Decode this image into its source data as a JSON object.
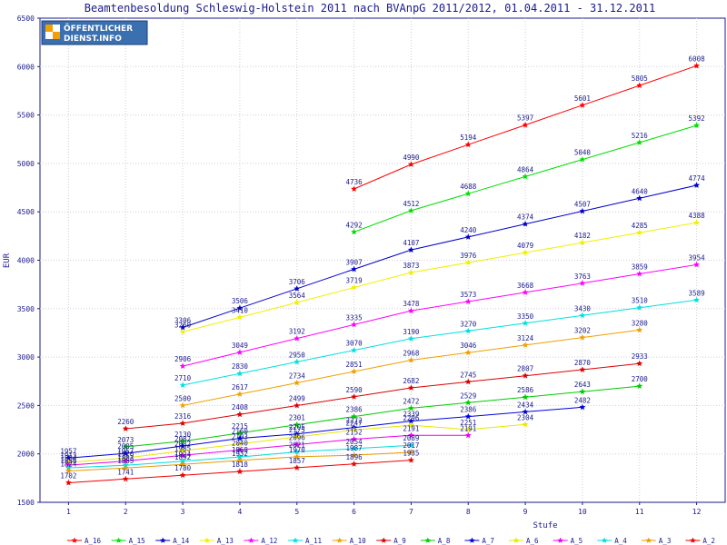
{
  "chart_data": {
    "type": "line",
    "title": "Beamtenbesoldung Schleswig-Holstein 2011 nach BVAnpG 2011/2012, 01.04.2011 - 31.12.2011",
    "xlabel": "Stufe",
    "ylabel": "EUR",
    "xlim": [
      0.5,
      12.5
    ],
    "ylim": [
      1500,
      6500
    ],
    "x_ticks": [
      1,
      2,
      3,
      4,
      5,
      6,
      7,
      8,
      9,
      10,
      11,
      12
    ],
    "y_ticks": [
      1500,
      2000,
      2500,
      3000,
      3500,
      4000,
      4500,
      5000,
      5500,
      6000,
      6500
    ],
    "grid": true,
    "legend_position": "bottom",
    "logo": {
      "line1": "ÖFFENTLICHER",
      "line2": "DIENST.INFO"
    },
    "series": [
      {
        "name": "A_16",
        "color": "#ff0000",
        "points": [
          [
            6,
            4736
          ],
          [
            7,
            4990
          ],
          [
            8,
            5194
          ],
          [
            9,
            5397
          ],
          [
            10,
            5601
          ],
          [
            11,
            5805
          ],
          [
            12,
            6008
          ]
        ]
      },
      {
        "name": "A_15",
        "color": "#00e000",
        "points": [
          [
            6,
            4292
          ],
          [
            7,
            4512
          ],
          [
            8,
            4688
          ],
          [
            9,
            4864
          ],
          [
            10,
            5040
          ],
          [
            11,
            5216
          ],
          [
            12,
            5392
          ]
        ]
      },
      {
        "name": "A_14",
        "color": "#0000cc",
        "points": [
          [
            3,
            3306
          ],
          [
            4,
            3506
          ],
          [
            5,
            3706
          ],
          [
            6,
            3907
          ],
          [
            7,
            4107
          ],
          [
            8,
            4240
          ],
          [
            9,
            4374
          ],
          [
            10,
            4507
          ],
          [
            11,
            4640
          ],
          [
            12,
            4774
          ]
        ]
      },
      {
        "name": "A_13",
        "color": "#f0f000",
        "points": [
          [
            3,
            3260
          ],
          [
            4,
            3410
          ],
          [
            5,
            3564
          ],
          [
            6,
            3719
          ],
          [
            7,
            3873
          ],
          [
            8,
            3976
          ],
          [
            9,
            4079
          ],
          [
            10,
            4182
          ],
          [
            11,
            4285
          ],
          [
            12,
            4388
          ]
        ]
      },
      {
        "name": "A_12",
        "color": "#ff00ff",
        "points": [
          [
            3,
            2906
          ],
          [
            4,
            3049
          ],
          [
            5,
            3192
          ],
          [
            6,
            3335
          ],
          [
            7,
            3478
          ],
          [
            8,
            3573
          ],
          [
            9,
            3668
          ],
          [
            10,
            3763
          ],
          [
            11,
            3859
          ],
          [
            12,
            3954
          ]
        ]
      },
      {
        "name": "A_11",
        "color": "#00e0e0",
        "points": [
          [
            3,
            2710
          ],
          [
            4,
            2830
          ],
          [
            5,
            2950
          ],
          [
            6,
            3070
          ],
          [
            7,
            3190
          ],
          [
            8,
            3270
          ],
          [
            9,
            3350
          ],
          [
            10,
            3430
          ],
          [
            11,
            3510
          ],
          [
            12,
            3589
          ]
        ]
      },
      {
        "name": "A_10",
        "color": "#f0a000",
        "points": [
          [
            3,
            2500
          ],
          [
            4,
            2617
          ],
          [
            5,
            2734
          ],
          [
            6,
            2851
          ],
          [
            7,
            2968
          ],
          [
            8,
            3046
          ],
          [
            9,
            3124
          ],
          [
            10,
            3202
          ],
          [
            11,
            3280
          ]
        ]
      },
      {
        "name": "A_9",
        "color": "#dd0000",
        "points": [
          [
            2,
            2260
          ],
          [
            3,
            2316
          ],
          [
            4,
            2408
          ],
          [
            5,
            2499
          ],
          [
            6,
            2590
          ],
          [
            7,
            2682
          ],
          [
            8,
            2745
          ],
          [
            9,
            2807
          ],
          [
            10,
            2870
          ],
          [
            11,
            2933
          ]
        ]
      },
      {
        "name": "A_8",
        "color": "#00cc00",
        "points": [
          [
            2,
            2073
          ],
          [
            3,
            2130
          ],
          [
            4,
            2215
          ],
          [
            5,
            2301
          ],
          [
            6,
            2386
          ],
          [
            7,
            2472
          ],
          [
            8,
            2529
          ],
          [
            9,
            2586
          ],
          [
            10,
            2643
          ],
          [
            11,
            2700
          ]
        ]
      },
      {
        "name": "A_7",
        "color": "#0000dd",
        "points": [
          [
            1,
            1957
          ],
          [
            2,
            2005
          ],
          [
            3,
            2082
          ],
          [
            4,
            2160
          ],
          [
            5,
            2205
          ],
          [
            6,
            2272
          ],
          [
            7,
            2339
          ],
          [
            8,
            2386
          ],
          [
            9,
            2434
          ],
          [
            10,
            2482
          ]
        ]
      },
      {
        "name": "A_6",
        "color": "#e8e800",
        "points": [
          [
            1,
            1913
          ],
          [
            2,
            1957
          ],
          [
            3,
            2032
          ],
          [
            4,
            2103
          ],
          [
            5,
            2175
          ],
          [
            6,
            2247
          ],
          [
            7,
            2296
          ],
          [
            8,
            2251
          ],
          [
            9,
            2304
          ]
        ]
      },
      {
        "name": "A_5",
        "color": "#ee00ee",
        "points": [
          [
            1,
            1884
          ],
          [
            2,
            1926
          ],
          [
            3,
            1985
          ],
          [
            4,
            2040
          ],
          [
            5,
            2096
          ],
          [
            6,
            2152
          ],
          [
            7,
            2191
          ],
          [
            8,
            2191
          ]
        ]
      },
      {
        "name": "A_4",
        "color": "#00dddd",
        "points": [
          [
            1,
            1856
          ],
          [
            2,
            1883
          ],
          [
            3,
            1924
          ],
          [
            4,
            1968
          ],
          [
            5,
            2021
          ],
          [
            6,
            2054
          ],
          [
            7,
            2089
          ]
        ]
      },
      {
        "name": "A_3",
        "color": "#e89a00",
        "points": [
          [
            1,
            1824
          ],
          [
            2,
            1855
          ],
          [
            3,
            1892
          ],
          [
            4,
            1932
          ],
          [
            5,
            1970
          ],
          [
            6,
            1987
          ],
          [
            7,
            2017
          ]
        ]
      },
      {
        "name": "A_2",
        "color": "#ee0000",
        "points": [
          [
            1,
            1702
          ],
          [
            2,
            1741
          ],
          [
            3,
            1780
          ],
          [
            4,
            1818
          ],
          [
            5,
            1857
          ],
          [
            6,
            1896
          ],
          [
            7,
            1935
          ]
        ]
      }
    ]
  }
}
